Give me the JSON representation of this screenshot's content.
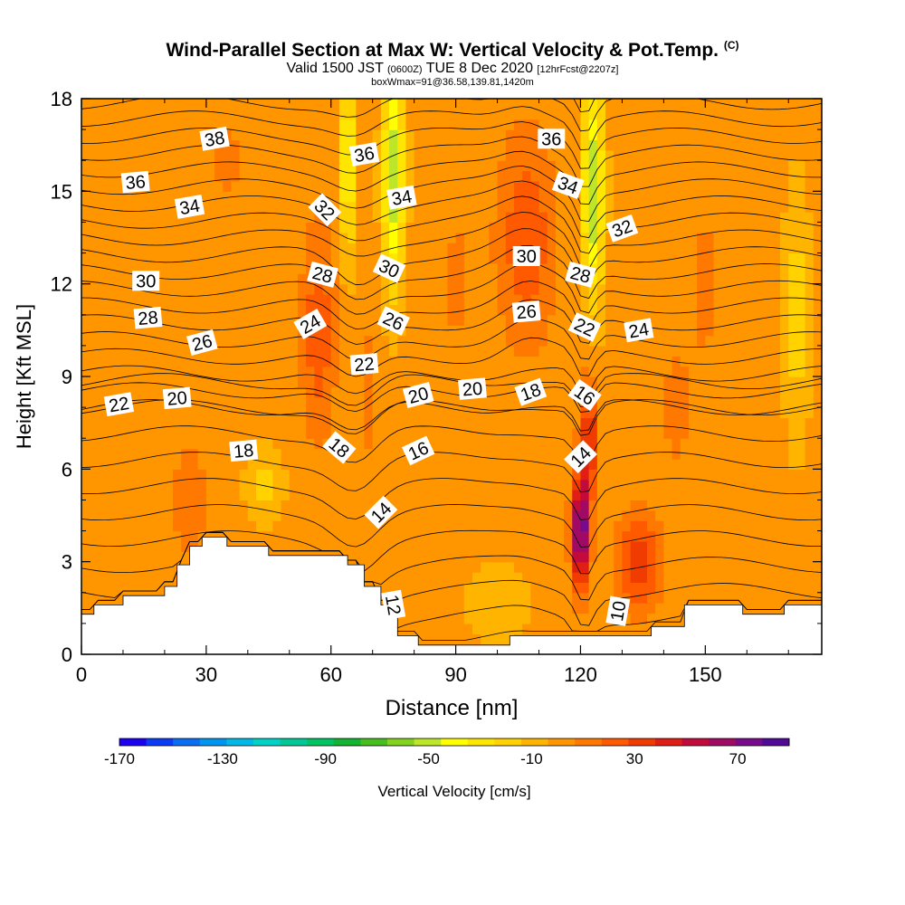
{
  "title": {
    "main": "Wind-Parallel Section at Max W: Vertical Velocity & Pot.Temp.",
    "copyright": "(C)",
    "valid_prefix": "Valid 1500 JST",
    "valid_utc": "(0600Z)",
    "valid_date": "TUE 8 Dec 2020",
    "forecast": "[12hrFcst@2207z]",
    "box": "boxWmax=91@36.58,139.81,1420m"
  },
  "chart_data": {
    "type": "heatmap",
    "xlabel": "Distance [nm]",
    "ylabel": "Height [Kft MSL]",
    "x_ticks": [
      "0",
      "30",
      "60",
      "90",
      "120",
      "150"
    ],
    "y_ticks": [
      "0",
      "3",
      "6",
      "9",
      "12",
      "15",
      "18"
    ],
    "xlim": [
      0,
      178
    ],
    "ylim": [
      0,
      18
    ],
    "colorbar": {
      "label": "Vertical Velocity [cm/s]",
      "tick_labels": [
        "-170",
        "-130",
        "-90",
        "-50",
        "-10",
        "30",
        "70"
      ],
      "tick_values": [
        -170,
        -130,
        -90,
        -50,
        -10,
        30,
        70
      ],
      "range": [
        -170,
        90
      ],
      "colors": [
        "#1b00f2",
        "#0a3cf5",
        "#0a6ef5",
        "#0096f0",
        "#00b9e6",
        "#00d2c8",
        "#00c896",
        "#00c364",
        "#14b432",
        "#46be1e",
        "#82d21e",
        "#bee628",
        "#ffff00",
        "#ffe600",
        "#ffd200",
        "#ffb400",
        "#ff9600",
        "#ff7800",
        "#ff5a00",
        "#f03c00",
        "#e11e14",
        "#c30a3c",
        "#a00a64",
        "#780a8c",
        "#500a96"
      ]
    },
    "terrain_profile": [
      [
        0,
        1.3
      ],
      [
        3,
        1.3
      ],
      [
        3,
        1.6
      ],
      [
        10,
        1.6
      ],
      [
        10,
        1.9
      ],
      [
        20,
        1.9
      ],
      [
        20,
        2.2
      ],
      [
        23,
        2.2
      ],
      [
        23,
        2.9
      ],
      [
        26,
        2.9
      ],
      [
        26,
        3.5
      ],
      [
        29,
        3.5
      ],
      [
        29,
        3.8
      ],
      [
        35,
        3.8
      ],
      [
        35,
        3.5
      ],
      [
        45,
        3.5
      ],
      [
        45,
        3.2
      ],
      [
        64,
        3.2
      ],
      [
        64,
        2.9
      ],
      [
        68,
        2.9
      ],
      [
        68,
        2.2
      ],
      [
        72,
        2.2
      ],
      [
        72,
        1.6
      ],
      [
        76,
        1.6
      ],
      [
        76,
        0.6
      ],
      [
        81,
        0.6
      ],
      [
        81,
        0.3
      ],
      [
        103,
        0.3
      ],
      [
        103,
        0.6
      ],
      [
        137,
        0.6
      ],
      [
        137,
        0.9
      ],
      [
        145,
        0.9
      ],
      [
        145,
        1.6
      ],
      [
        159,
        1.6
      ],
      [
        159,
        1.3
      ],
      [
        169,
        1.3
      ],
      [
        169,
        1.6
      ],
      [
        178,
        1.6
      ]
    ],
    "w_field": {
      "background": 0,
      "features": [
        {
          "x": 57,
          "y": 10.5,
          "sx": 4,
          "sy": 3.5,
          "w": 25
        },
        {
          "x": 64,
          "y": 16,
          "sx": 1.6,
          "sy": 3,
          "w": -45
        },
        {
          "x": 75,
          "y": 15.5,
          "sx": 2.5,
          "sy": 3.5,
          "w": -55
        },
        {
          "x": 69,
          "y": 8.5,
          "sx": 2,
          "sy": 2.5,
          "w": 12
        },
        {
          "x": 107,
          "y": 13.5,
          "sx": 7,
          "sy": 3.5,
          "w": 25
        },
        {
          "x": 123,
          "y": 15,
          "sx": 2.5,
          "sy": 3.5,
          "w": -55
        },
        {
          "x": 120,
          "y": 4,
          "sx": 2,
          "sy": 1.8,
          "w": 85
        },
        {
          "x": 122,
          "y": 7,
          "sx": 2,
          "sy": 2,
          "w": 40
        },
        {
          "x": 134,
          "y": 3,
          "sx": 5,
          "sy": 1.6,
          "w": 35
        },
        {
          "x": 26,
          "y": 5,
          "sx": 4,
          "sy": 2,
          "w": 16
        },
        {
          "x": 44,
          "y": 5.5,
          "sx": 4,
          "sy": 1.2,
          "w": -20
        },
        {
          "x": 100,
          "y": 1.7,
          "sx": 8,
          "sy": 1.2,
          "w": -12
        },
        {
          "x": 172,
          "y": 11,
          "sx": 3,
          "sy": 4,
          "w": -20
        },
        {
          "x": 150,
          "y": 12,
          "sx": 4,
          "sy": 3,
          "w": 10
        },
        {
          "x": 143,
          "y": 8,
          "sx": 4,
          "sy": 2,
          "w": 12
        },
        {
          "x": 35,
          "y": 16,
          "sx": 6,
          "sy": 2.5,
          "w": 8
        },
        {
          "x": 90,
          "y": 12,
          "sx": 5,
          "sy": 4,
          "w": 8
        }
      ]
    },
    "theta_contours": {
      "levels": [
        10,
        12,
        14,
        16,
        18,
        20,
        22,
        24,
        26,
        28,
        30,
        32,
        34,
        36,
        38
      ],
      "labels": [
        {
          "text": "38",
          "x": 32,
          "y": 16.7,
          "angle": -10
        },
        {
          "text": "36",
          "x": 13,
          "y": 15.3,
          "angle": -5
        },
        {
          "text": "34",
          "x": 26,
          "y": 14.5,
          "angle": -10
        },
        {
          "text": "32",
          "x": 58.5,
          "y": 14.4,
          "angle": 45
        },
        {
          "text": "36",
          "x": 68,
          "y": 16.2,
          "angle": -10
        },
        {
          "text": "34",
          "x": 77,
          "y": 14.8,
          "angle": -10
        },
        {
          "text": "30",
          "x": 15.5,
          "y": 12.1,
          "angle": 0
        },
        {
          "text": "28",
          "x": 58,
          "y": 12.3,
          "angle": 15
        },
        {
          "text": "30",
          "x": 74,
          "y": 12.5,
          "angle": 25
        },
        {
          "text": "28",
          "x": 16,
          "y": 10.9,
          "angle": -5
        },
        {
          "text": "24",
          "x": 55,
          "y": 10.7,
          "angle": -30
        },
        {
          "text": "26",
          "x": 29,
          "y": 10.1,
          "angle": -15
        },
        {
          "text": "26",
          "x": 75,
          "y": 10.8,
          "angle": 25
        },
        {
          "text": "22",
          "x": 68,
          "y": 9.4,
          "angle": -5
        },
        {
          "text": "30",
          "x": 107,
          "y": 12.9,
          "angle": 0
        },
        {
          "text": "26",
          "x": 107,
          "y": 11.1,
          "angle": -5
        },
        {
          "text": "36",
          "x": 113,
          "y": 16.7,
          "angle": 0
        },
        {
          "text": "34",
          "x": 117,
          "y": 15.2,
          "angle": 20
        },
        {
          "text": "32",
          "x": 130,
          "y": 13.8,
          "angle": -20
        },
        {
          "text": "28",
          "x": 120,
          "y": 12.3,
          "angle": 15
        },
        {
          "text": "22",
          "x": 121,
          "y": 10.6,
          "angle": 25
        },
        {
          "text": "24",
          "x": 134,
          "y": 10.5,
          "angle": -10
        },
        {
          "text": "22",
          "x": 9,
          "y": 8.1,
          "angle": -10
        },
        {
          "text": "20",
          "x": 23,
          "y": 8.3,
          "angle": -5
        },
        {
          "text": "20",
          "x": 81,
          "y": 8.4,
          "angle": -15
        },
        {
          "text": "20",
          "x": 94,
          "y": 8.6,
          "angle": -5
        },
        {
          "text": "18",
          "x": 108,
          "y": 8.5,
          "angle": -20
        },
        {
          "text": "16",
          "x": 121,
          "y": 8.4,
          "angle": 35
        },
        {
          "text": "18",
          "x": 39,
          "y": 6.6,
          "angle": -5
        },
        {
          "text": "18",
          "x": 62,
          "y": 6.7,
          "angle": 40
        },
        {
          "text": "16",
          "x": 81,
          "y": 6.6,
          "angle": -25
        },
        {
          "text": "14",
          "x": 120,
          "y": 6.4,
          "angle": -45
        },
        {
          "text": "14",
          "x": 72,
          "y": 4.6,
          "angle": -45
        },
        {
          "text": "12",
          "x": 75,
          "y": 1.6,
          "angle": 80
        },
        {
          "text": "10",
          "x": 129,
          "y": 1.4,
          "angle": -80
        }
      ]
    }
  }
}
